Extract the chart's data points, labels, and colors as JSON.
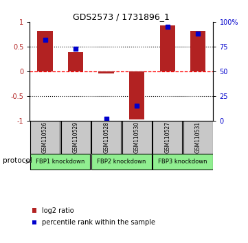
{
  "title": "GDS2573 / 1731896_1",
  "samples": [
    "GSM110526",
    "GSM110529",
    "GSM110528",
    "GSM110530",
    "GSM110527",
    "GSM110531"
  ],
  "log2_ratio": [
    0.82,
    0.38,
    -0.05,
    -0.97,
    0.93,
    0.82
  ],
  "percentile_rank": [
    0.82,
    0.73,
    0.02,
    0.15,
    0.95,
    0.88
  ],
  "protocols": [
    {
      "label": "FBP1 knockdown",
      "start": 0,
      "end": 1
    },
    {
      "label": "FBP2 knockdown",
      "start": 2,
      "end": 3
    },
    {
      "label": "FBP3 knockdown",
      "start": 4,
      "end": 5
    }
  ],
  "ylim": [
    -1,
    1
  ],
  "yticks_left": [
    -1,
    -0.5,
    0,
    0.5,
    1
  ],
  "ytick_labels_left": [
    "-1",
    "-0.5",
    "0",
    "0.5",
    "1"
  ],
  "ytick_labels_right": [
    "0",
    "25",
    "50",
    "75",
    "100%"
  ],
  "bar_color": "#B22222",
  "dot_color": "#0000CC",
  "zero_line_color": "#FF0000",
  "grid_color": "#000000",
  "bg_color": "#FFFFFF",
  "sample_bg": "#C8C8C8",
  "proto_color": "#90EE90",
  "legend_red_label": "log2 ratio",
  "legend_blue_label": "percentile rank within the sample",
  "bar_width": 0.5
}
